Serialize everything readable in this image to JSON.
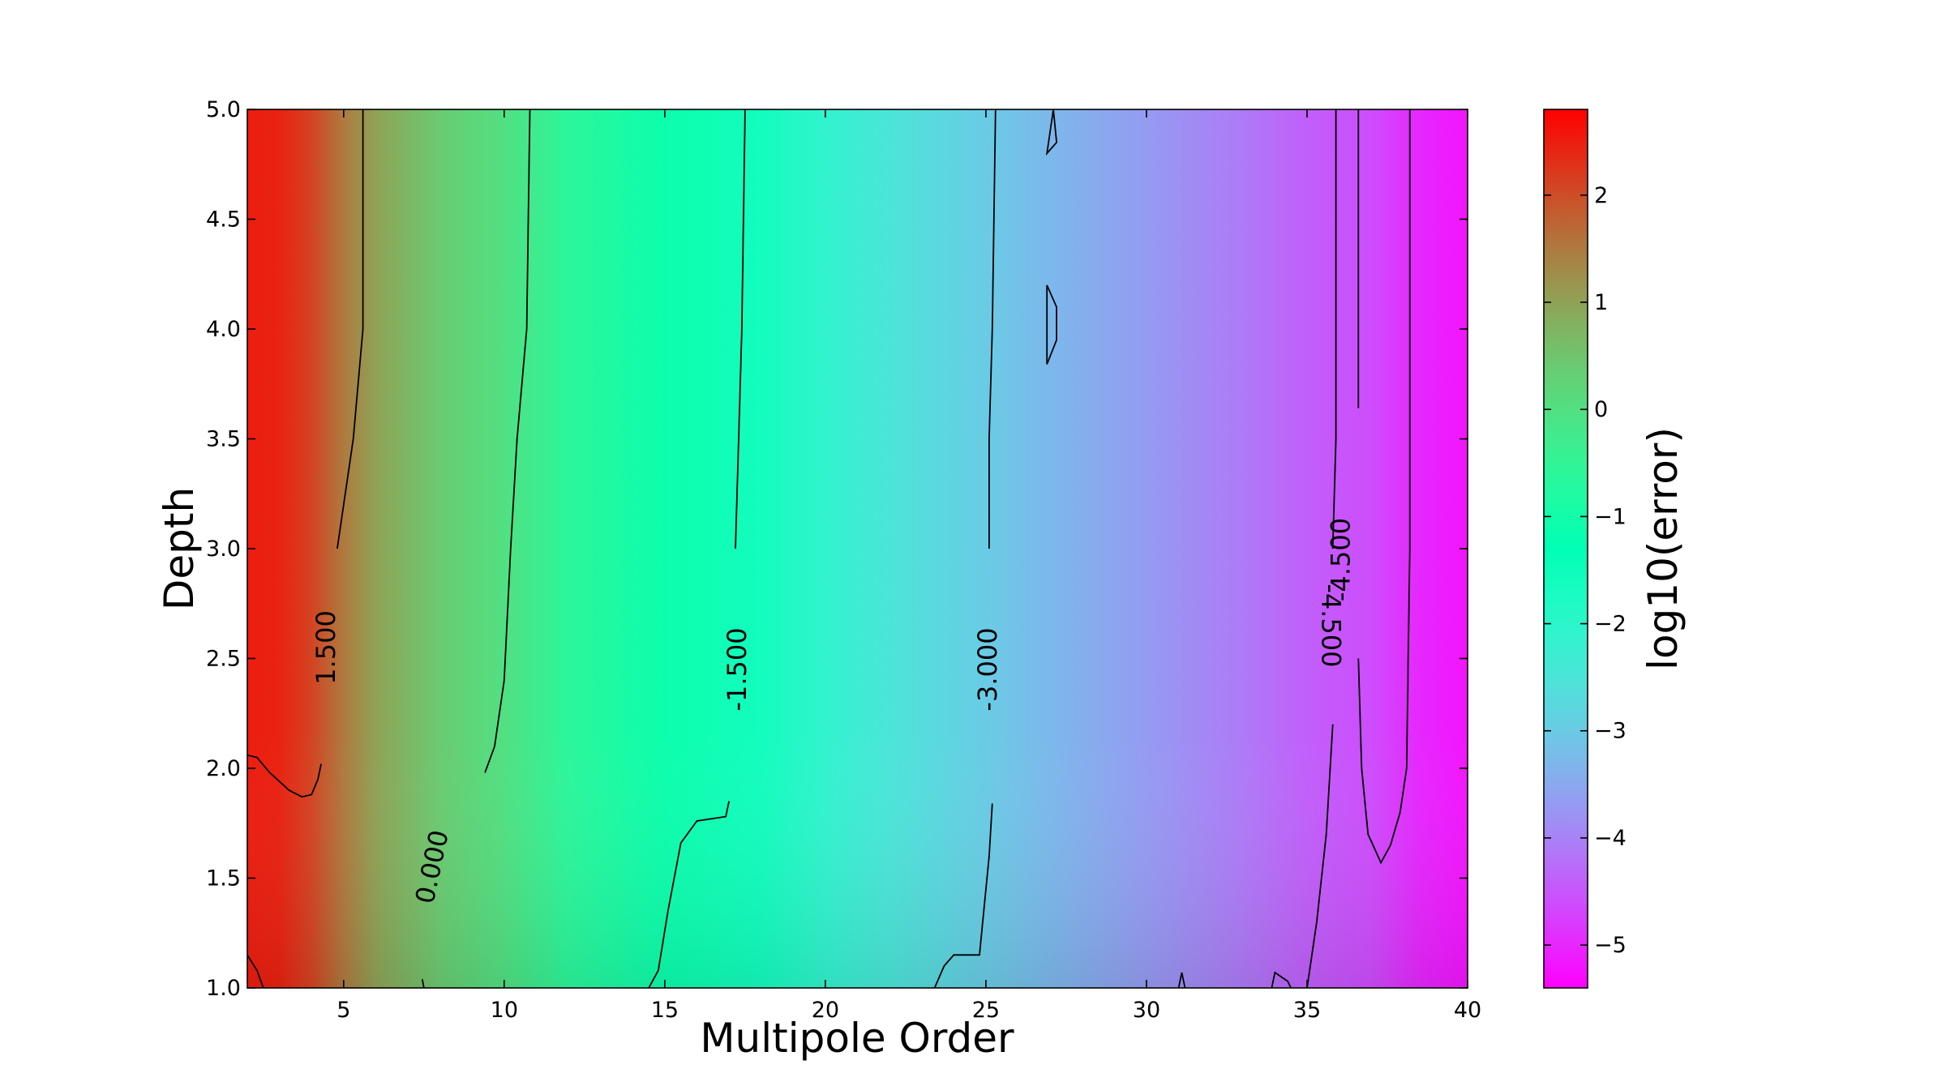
{
  "chart_data": {
    "type": "heatmap",
    "title": "",
    "xlabel": "Multipole Order",
    "ylabel": "Depth",
    "xlim": [
      2,
      40
    ],
    "ylim": [
      1.0,
      5.0
    ],
    "x_ticks": [
      5,
      10,
      15,
      20,
      25,
      30,
      35,
      40
    ],
    "x_tick_labels": [
      "5",
      "10",
      "15",
      "20",
      "25",
      "30",
      "35",
      "40"
    ],
    "y_ticks": [
      1.0,
      1.5,
      2.0,
      2.5,
      3.0,
      3.5,
      4.0,
      4.5,
      5.0
    ],
    "y_tick_labels": [
      "1.0",
      "1.5",
      "2.0",
      "2.5",
      "3.0",
      "3.5",
      "4.0",
      "4.5",
      "5.0"
    ],
    "colormap": "rainbow",
    "colorbar": {
      "label": "log10(error)",
      "range": [
        -5.4,
        2.8
      ],
      "ticks": [
        2,
        1,
        0,
        -1,
        -2,
        -3,
        -4,
        -5
      ],
      "tick_labels": [
        "2",
        "1",
        "0",
        "−1",
        "−2",
        "−3",
        "−4",
        "−5"
      ]
    },
    "value_profile": {
      "x": [
        2,
        3,
        4,
        5,
        6,
        8,
        10,
        12,
        15,
        18,
        20,
        22,
        25,
        27,
        30,
        33,
        35,
        37,
        38.5,
        40
      ],
      "log10_error_at_high_depth": [
        2.5,
        2.45,
        2.1,
        1.5,
        1.0,
        0.4,
        0.0,
        -0.6,
        -1.1,
        -1.6,
        -2.1,
        -2.5,
        -3.0,
        -3.3,
        -3.7,
        -4.1,
        -4.4,
        -4.6,
        -5.0,
        -5.2
      ]
    },
    "contour_levels": [
      {
        "level": 1.5,
        "label": "1.500"
      },
      {
        "level": 0.0,
        "label": "0.000"
      },
      {
        "level": -1.5,
        "label": "-1.500"
      },
      {
        "level": -3.0,
        "label": "-3.000"
      },
      {
        "level": -4.5,
        "label": "-4.500"
      }
    ],
    "contours": [
      {
        "level": 1.5,
        "points": [
          [
            5.6,
            5.0
          ],
          [
            5.6,
            4.0
          ],
          [
            5.3,
            3.5
          ],
          [
            4.8,
            3.0
          ]
        ]
      },
      {
        "level": 1.5,
        "points": [
          [
            2.0,
            2.06
          ],
          [
            2.3,
            2.05
          ],
          [
            2.7,
            1.98
          ],
          [
            3.3,
            1.9
          ],
          [
            3.7,
            1.87
          ],
          [
            4.0,
            1.88
          ],
          [
            4.2,
            1.95
          ],
          [
            4.3,
            2.02
          ]
        ]
      },
      {
        "level": 1.5,
        "points": [
          [
            2.0,
            1.15
          ],
          [
            2.3,
            1.08
          ],
          [
            2.5,
            1.0
          ]
        ]
      },
      {
        "level": 0.0,
        "points": [
          [
            10.8,
            5.0
          ],
          [
            10.7,
            4.0
          ],
          [
            10.4,
            3.5
          ],
          [
            10.2,
            3.0
          ],
          [
            10.0,
            2.4
          ],
          [
            9.7,
            2.1
          ],
          [
            9.4,
            1.98
          ]
        ]
      },
      {
        "level": 0.0,
        "points": [
          [
            7.5,
            1.0
          ],
          [
            7.45,
            1.04
          ]
        ]
      },
      {
        "level": -1.5,
        "points": [
          [
            17.5,
            5.0
          ],
          [
            17.4,
            4.0
          ],
          [
            17.3,
            3.5
          ],
          [
            17.2,
            3.0
          ]
        ]
      },
      {
        "level": -1.5,
        "points": [
          [
            17.0,
            1.85
          ],
          [
            16.9,
            1.78
          ],
          [
            16.0,
            1.76
          ],
          [
            15.5,
            1.66
          ],
          [
            15.1,
            1.35
          ],
          [
            14.8,
            1.08
          ],
          [
            14.5,
            1.0
          ]
        ]
      },
      {
        "level": -3.0,
        "points": [
          [
            25.3,
            5.0
          ],
          [
            25.2,
            4.0
          ],
          [
            25.1,
            3.5
          ],
          [
            25.1,
            3.0
          ]
        ]
      },
      {
        "level": -3.0,
        "points": [
          [
            25.2,
            1.84
          ],
          [
            25.1,
            1.6
          ],
          [
            24.8,
            1.15
          ],
          [
            24.0,
            1.15
          ],
          [
            23.7,
            1.1
          ],
          [
            23.4,
            1.0
          ]
        ]
      },
      {
        "level": -3.0,
        "points": [
          [
            27.1,
            5.0
          ],
          [
            27.2,
            4.85
          ],
          [
            26.9,
            4.8
          ],
          [
            27.1,
            5.0
          ]
        ]
      },
      {
        "level": -3.0,
        "points": [
          [
            26.9,
            4.2
          ],
          [
            27.2,
            4.1
          ],
          [
            27.2,
            3.95
          ],
          [
            26.9,
            3.84
          ],
          [
            26.9,
            4.2
          ]
        ]
      },
      {
        "level": -3.0,
        "points": [
          [
            31.0,
            1.0
          ],
          [
            31.1,
            1.07
          ],
          [
            31.2,
            1.0
          ]
        ]
      },
      {
        "level": -4.5,
        "points": [
          [
            35.9,
            5.0
          ],
          [
            35.9,
            4.0
          ],
          [
            35.9,
            3.5
          ],
          [
            35.8,
            3.0
          ]
        ]
      },
      {
        "level": -4.5,
        "points": [
          [
            35.8,
            2.2
          ],
          [
            35.6,
            1.7
          ],
          [
            35.3,
            1.3
          ],
          [
            35.0,
            1.0
          ]
        ]
      },
      {
        "level": -4.5,
        "points": [
          [
            36.6,
            5.0
          ],
          [
            36.6,
            4.0
          ],
          [
            36.6,
            3.64
          ]
        ]
      },
      {
        "level": -4.5,
        "points": [
          [
            36.6,
            2.5
          ],
          [
            36.7,
            2.0
          ],
          [
            36.9,
            1.7
          ],
          [
            37.3,
            1.57
          ],
          [
            37.6,
            1.65
          ],
          [
            37.9,
            1.8
          ],
          [
            38.1,
            2.0
          ],
          [
            38.2,
            3.0
          ],
          [
            38.2,
            4.0
          ],
          [
            38.2,
            5.0
          ]
        ]
      },
      {
        "level": -4.5,
        "points": [
          [
            33.9,
            1.0
          ],
          [
            34.0,
            1.07
          ],
          [
            34.4,
            1.03
          ],
          [
            34.5,
            1.0
          ]
        ]
      }
    ],
    "contour_labels": [
      {
        "text": "1.500",
        "x": 4.5,
        "y": 2.55,
        "angle": -90
      },
      {
        "text": "0.000",
        "x": 7.8,
        "y": 1.55,
        "angle": -78
      },
      {
        "text": "-1.500",
        "x": 17.3,
        "y": 2.45,
        "angle": -90
      },
      {
        "text": "-3.000",
        "x": 25.1,
        "y": 2.45,
        "angle": -90
      },
      {
        "text": "-4.500",
        "x": 36.1,
        "y": 2.95,
        "angle": -90
      },
      {
        "text": "-4.500",
        "x": 35.7,
        "y": 2.65,
        "angle": 90
      }
    ]
  }
}
